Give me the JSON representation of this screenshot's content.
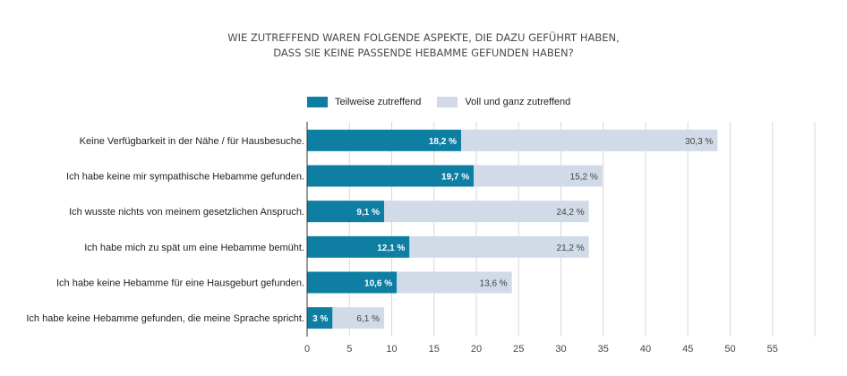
{
  "colors": {
    "series_dark": "#0e7fa3",
    "series_light": "#d0dbe7",
    "grid": "#d8d8d8",
    "axis": "#333333"
  },
  "chart_data": {
    "type": "bar",
    "orientation": "horizontal",
    "stacked": true,
    "title_lines": [
      "WIE ZUTREFFEND WAREN FOLGENDE ASPEKTE, DIE DAZU GEFÜHRT HABEN,",
      "DASS SIE KEINE PASSENDE HEBAMME GEFUNDEN HABEN?"
    ],
    "legend": {
      "position": "top-center",
      "entries": [
        "Teilweise zutreffend",
        "Voll und ganz zutreffend"
      ]
    },
    "categories": [
      "Keine Verfügbarkeit in der Nähe / für Hausbesuche.",
      "Ich habe keine mir sympathische Hebamme gefunden.",
      "Ich wusste nichts von meinem gesetzlichen Anspruch.",
      "Ich habe mich zu spät um eine Hebamme bemüht.",
      "Ich habe keine Hebamme für eine Hausgeburt gefunden.",
      "Ich habe keine Hebamme gefunden, die meine Sprache spricht."
    ],
    "series": [
      {
        "name": "Teilweise zutreffend",
        "values": [
          18.2,
          19.7,
          9.1,
          12.1,
          10.6,
          3.0
        ],
        "labels": [
          "18,2 %",
          "19,7 %",
          "9,1 %",
          "12,1 %",
          "10,6 %",
          "3 %"
        ]
      },
      {
        "name": "Voll und ganz zutreffend",
        "values": [
          30.3,
          15.2,
          24.2,
          21.2,
          13.6,
          6.1
        ],
        "labels": [
          "30,3 %",
          "15,2 %",
          "24,2 %",
          "21,2 %",
          "13,6 %",
          "6,1 %"
        ]
      }
    ],
    "xlim": [
      0,
      60
    ],
    "xticks": [
      0,
      5,
      10,
      15,
      20,
      25,
      30,
      35,
      40,
      45,
      50,
      55
    ],
    "xtick_labels": [
      "0",
      "5",
      "10",
      "15",
      "20",
      "25",
      "30",
      "35",
      "40",
      "45",
      "50",
      "55"
    ],
    "gridlines_at": [
      5,
      10,
      15,
      20,
      25,
      30,
      35,
      40,
      45,
      50,
      55,
      60
    ],
    "grid": true,
    "xlabel": "",
    "ylabel": ""
  }
}
